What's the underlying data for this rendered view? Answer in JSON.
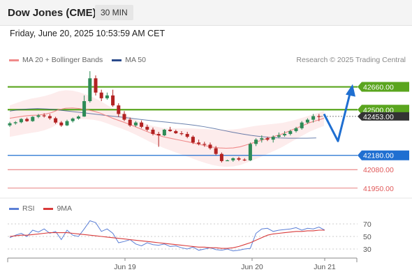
{
  "header": {
    "title": "Dow Jones (CME)",
    "timeframe": "30 MIN"
  },
  "timestamp": "Friday, June 20, 2025 10:53:59 AM CET",
  "legend": {
    "ma20_label": "MA 20 + Bollinger Bands",
    "ma50_label": "MA 50",
    "credit": "Research © 2025 Trading Central",
    "rsi_label": "RSI",
    "ma9_label": "9MA"
  },
  "colors": {
    "ma20": "#f08a8a",
    "ma50": "#2b4b8c",
    "green_level": "#5aa51e",
    "blue_level": "#1f6fd1",
    "red_level": "#e05858",
    "rsi": "#5b7fd6",
    "ma9": "#d93a3a",
    "bull": "#2e8b57",
    "bear": "#b22222"
  },
  "chart_data": [
    {
      "type": "candlestick",
      "title": "",
      "y_range": [
        41900,
        42780
      ],
      "x_labels": [
        "Jun 19",
        "Jun 20",
        "Jun 21"
      ],
      "levels": [
        {
          "value": 42660,
          "label": "42660.00",
          "kind": "resistance"
        },
        {
          "value": 42500,
          "label": "42500.00",
          "kind": "pivot"
        },
        {
          "value": 42180,
          "label": "42180.00",
          "kind": "support"
        },
        {
          "value": 42080,
          "label": "42080.00",
          "kind": "support"
        },
        {
          "value": 41950,
          "label": "41950.00",
          "kind": "support"
        }
      ],
      "current_price": {
        "value": 42453,
        "label": "42453.00"
      },
      "projection": [
        42470,
        42280,
        42650
      ],
      "candles_ohlc": [
        [
          42390,
          42415,
          42380,
          42405
        ],
        [
          42405,
          42420,
          42395,
          42412
        ],
        [
          42412,
          42440,
          42405,
          42435
        ],
        [
          42435,
          42445,
          42415,
          42420
        ],
        [
          42420,
          42455,
          42415,
          42450
        ],
        [
          42450,
          42470,
          42440,
          42460
        ],
        [
          42460,
          42475,
          42445,
          42455
        ],
        [
          42455,
          42470,
          42430,
          42440
        ],
        [
          42440,
          42450,
          42400,
          42410
        ],
        [
          42410,
          42420,
          42380,
          42390
        ],
        [
          42390,
          42430,
          42385,
          42420
        ],
        [
          42420,
          42445,
          42410,
          42438
        ],
        [
          42438,
          42460,
          42430,
          42452
        ],
        [
          42452,
          42600,
          42450,
          42560
        ],
        [
          42560,
          42770,
          42550,
          42720
        ],
        [
          42720,
          42740,
          42600,
          42620
        ],
        [
          42620,
          42640,
          42560,
          42580
        ],
        [
          42580,
          42620,
          42570,
          42600
        ],
        [
          42600,
          42640,
          42520,
          42530
        ],
        [
          42530,
          42545,
          42450,
          42470
        ],
        [
          42470,
          42490,
          42420,
          42430
        ],
        [
          42430,
          42445,
          42380,
          42390
        ],
        [
          42390,
          42420,
          42380,
          42410
        ],
        [
          42410,
          42425,
          42370,
          42380
        ],
        [
          42380,
          42395,
          42350,
          42360
        ],
        [
          42360,
          42375,
          42320,
          42330
        ],
        [
          42330,
          42345,
          42240,
          42320
        ],
        [
          42320,
          42365,
          42315,
          42360
        ],
        [
          42360,
          42380,
          42345,
          42350
        ],
        [
          42350,
          42360,
          42330,
          42335
        ],
        [
          42335,
          42350,
          42320,
          42330
        ],
        [
          42330,
          42345,
          42300,
          42310
        ],
        [
          42310,
          42320,
          42260,
          42270
        ],
        [
          42270,
          42290,
          42250,
          42260
        ],
        [
          42260,
          42275,
          42240,
          42255
        ],
        [
          42255,
          42270,
          42220,
          42230
        ],
        [
          42230,
          42245,
          42180,
          42190
        ],
        [
          42190,
          42200,
          42130,
          42140
        ],
        [
          42140,
          42150,
          42140,
          42145
        ],
        [
          42145,
          42165,
          42135,
          42160
        ],
        [
          42160,
          42170,
          42140,
          42150
        ],
        [
          42150,
          42160,
          42140,
          42145
        ],
        [
          42145,
          42270,
          42140,
          42260
        ],
        [
          42260,
          42300,
          42245,
          42290
        ],
        [
          42290,
          42320,
          42270,
          42300
        ],
        [
          42300,
          42310,
          42280,
          42290
        ],
        [
          42290,
          42320,
          42270,
          42310
        ],
        [
          42310,
          42340,
          42300,
          42320
        ],
        [
          42320,
          42350,
          42310,
          42330
        ],
        [
          42330,
          42360,
          42320,
          42350
        ],
        [
          42350,
          42380,
          42340,
          42370
        ],
        [
          42370,
          42420,
          42360,
          42410
        ],
        [
          42410,
          42440,
          42400,
          42430
        ],
        [
          42430,
          42470,
          42410,
          42455
        ],
        [
          42455,
          42470,
          42420,
          42453
        ]
      ],
      "ma20": [
        42440,
        42448,
        42455,
        42460,
        42462,
        42468,
        42480,
        42500,
        42510,
        42512,
        42508,
        42500,
        42490,
        42475,
        42455,
        42435,
        42418,
        42400,
        42380,
        42360,
        42340,
        42325,
        42310,
        42300,
        42290,
        42280,
        42270,
        42258,
        42248,
        42238,
        42232,
        42230,
        42232,
        42240,
        42255,
        42270,
        42285,
        42300,
        42315,
        42330,
        42350,
        42370,
        42390,
        42410,
        42425,
        42440
      ],
      "ma50": [
        42490,
        42500,
        42505,
        42508,
        42505,
        42500,
        42492,
        42485,
        42478,
        42470,
        42462,
        42455,
        42448,
        42440,
        42432,
        42425,
        42418,
        42412,
        42405,
        42398,
        42390,
        42380,
        42368,
        42355,
        42342,
        42330,
        42320,
        42312,
        42306,
        42302,
        42300,
        42300,
        42300,
        42302
      ]
    },
    {
      "type": "line",
      "title": "",
      "y_range": [
        20,
        80
      ],
      "y_ticks": [
        70,
        50,
        30
      ],
      "series": [
        {
          "name": "RSI",
          "values": [
            48,
            52,
            55,
            50,
            60,
            57,
            62,
            55,
            58,
            45,
            60,
            52,
            50,
            62,
            75,
            72,
            58,
            62,
            55,
            40,
            42,
            45,
            38,
            35,
            40,
            37,
            36,
            38,
            34,
            35,
            32,
            30,
            33,
            28,
            30,
            32,
            29,
            28,
            30,
            27,
            28,
            30,
            31,
            55,
            62,
            63,
            58,
            60,
            61,
            62,
            64,
            60,
            63,
            62,
            65,
            60
          ]
        },
        {
          "name": "9MA",
          "values": [
            50,
            51,
            52,
            52,
            53,
            54,
            55,
            56,
            56,
            56,
            56,
            55,
            54,
            53,
            52,
            51,
            50,
            49,
            48,
            47,
            46,
            45,
            44,
            43,
            42,
            41,
            40,
            39,
            38,
            37,
            36,
            35,
            34,
            33,
            33,
            32,
            32,
            31,
            31,
            32,
            34,
            37,
            40,
            44,
            48,
            52,
            54,
            55,
            56,
            57,
            58,
            58,
            59,
            59,
            60,
            60
          ]
        }
      ]
    }
  ]
}
